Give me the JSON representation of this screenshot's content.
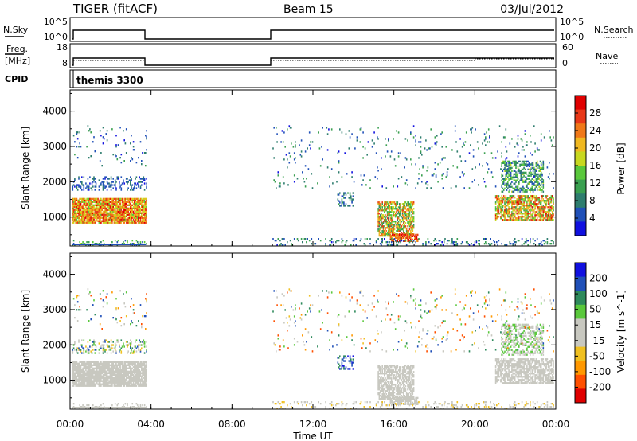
{
  "header": {
    "station": "TIGER (fitACF)",
    "beam": "Beam 15",
    "date": "03/Jul/2012"
  },
  "params": {
    "nsky_label": "N.Sky",
    "nsky_ticks": [
      "10^5",
      "10^0"
    ],
    "nsearch_label": "N.Search",
    "freq_label_1": "Freq.",
    "freq_label_2": "[MHz]",
    "freq_ticks": [
      "18",
      "8"
    ],
    "nave_label": "Nave",
    "nave_ticks": [
      "60",
      "0"
    ],
    "cpid_label": "CPID",
    "cpid_value": "themis 3300"
  },
  "colors": {
    "power": [
      "#1010e0",
      "#2050b8",
      "#2e7d6e",
      "#3aa050",
      "#5ac83c",
      "#c8d820",
      "#f0b820",
      "#f07818",
      "#e83818",
      "#e00000"
    ],
    "velocity": [
      "#e00000",
      "#ff5000",
      "#ff9800",
      "#f0c020",
      "#c8c8c0",
      "#c8c8c0",
      "#5ac83c",
      "#2e8a5c",
      "#2050b8",
      "#1010e0"
    ]
  },
  "chart_data": [
    {
      "type": "heatmap",
      "title": "Power",
      "ylabel": "Slant Range [km]",
      "xlabel": "Time UT",
      "x_ticks": [
        "00:00",
        "04:00",
        "08:00",
        "12:00",
        "16:00",
        "20:00",
        "00:00"
      ],
      "x_range_hours": [
        0,
        24
      ],
      "y_ticks": [
        1000,
        2000,
        3000,
        4000
      ],
      "ylim": [
        180,
        4600
      ],
      "colorbar_label": "Power [dB]",
      "colorbar_ticks": [
        "28",
        "24",
        "20",
        "16",
        "12",
        "8",
        "4"
      ],
      "colorbar_range": [
        0,
        30
      ]
    },
    {
      "type": "heatmap",
      "title": "Velocity",
      "ylabel": "Slant Range [km]",
      "xlabel": "Time UT",
      "x_ticks": [
        "00:00",
        "04:00",
        "08:00",
        "12:00",
        "16:00",
        "20:00",
        "00:00"
      ],
      "x_range_hours": [
        0,
        24
      ],
      "y_ticks": [
        1000,
        2000,
        3000,
        4000
      ],
      "ylim": [
        180,
        4600
      ],
      "colorbar_label": "Velocity [m s^-1]",
      "colorbar_ticks": [
        "200",
        "100",
        "50",
        "15",
        "-15",
        "-50",
        "-100",
        "-200"
      ],
      "colorbar_range": [
        -250,
        250
      ]
    }
  ],
  "echo_regions": [
    {
      "t0": 0.1,
      "t1": 3.75,
      "r0": 820,
      "r1": 1500,
      "density": 0.9,
      "power": [
        14,
        28
      ],
      "vel": [
        -15,
        15
      ]
    },
    {
      "t0": 0.1,
      "t1": 3.75,
      "r0": 1750,
      "r1": 2150,
      "density": 0.25,
      "power": [
        2,
        8
      ],
      "vel": [
        -100,
        200
      ]
    },
    {
      "t0": 0.1,
      "t1": 3.75,
      "r0": 180,
      "r1": 350,
      "density": 0.2,
      "power": [
        4,
        16
      ],
      "vel": [
        -50,
        50
      ]
    },
    {
      "t0": 13.2,
      "t1": 14.0,
      "r0": 1300,
      "r1": 1700,
      "density": 0.3,
      "power": [
        2,
        10
      ],
      "vel": [
        100,
        250
      ]
    },
    {
      "t0": 15.2,
      "t1": 17.0,
      "r0": 450,
      "r1": 1400,
      "density": 0.65,
      "power": [
        8,
        26
      ],
      "vel": [
        -15,
        15
      ]
    },
    {
      "t0": 15.8,
      "t1": 17.2,
      "r0": 300,
      "r1": 500,
      "density": 0.7,
      "power": [
        20,
        30
      ],
      "vel": [
        -15,
        30
      ]
    },
    {
      "t0": 10.0,
      "t1": 23.9,
      "r0": 180,
      "r1": 380,
      "density": 0.18,
      "power": [
        2,
        12
      ],
      "vel": [
        -100,
        50
      ]
    },
    {
      "t0": 21.0,
      "t1": 23.9,
      "r0": 900,
      "r1": 1600,
      "density": 0.65,
      "power": [
        10,
        28
      ],
      "vel": [
        -15,
        15
      ]
    },
    {
      "t0": 21.3,
      "t1": 23.4,
      "r0": 1700,
      "r1": 2600,
      "density": 0.45,
      "power": [
        4,
        16
      ],
      "vel": [
        -50,
        100
      ]
    },
    {
      "t0": 10.0,
      "t1": 23.9,
      "r0": 1800,
      "r1": 3600,
      "density": 0.03,
      "power": [
        2,
        12
      ],
      "vel": [
        -200,
        200
      ]
    },
    {
      "t0": 0.1,
      "t1": 3.75,
      "r0": 2300,
      "r1": 3600,
      "density": 0.04,
      "power": [
        2,
        10
      ],
      "vel": [
        -200,
        200
      ]
    }
  ]
}
